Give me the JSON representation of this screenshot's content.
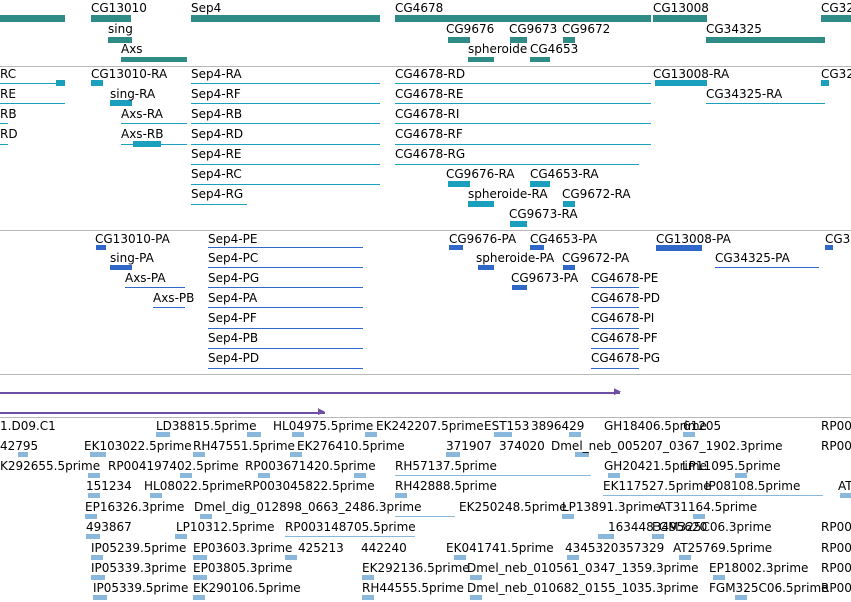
{
  "colors": {
    "gene": "#2e8b86",
    "transcript": "#1aa0bd",
    "protein": "#2f68c8",
    "pale": "#8ab8dc",
    "long": "#6d4fa4",
    "separator": "#b8b8b8"
  },
  "tracks": {
    "genes": {
      "labels": [
        "CG13010",
        "Sep4",
        "CG4678",
        "CG13008",
        "CG32",
        "sing",
        "CG9676",
        "CG9673",
        "CG9672",
        "CG34325",
        "Axs",
        "spheroide",
        "CG4653"
      ]
    },
    "transcripts": {
      "labels": [
        "RC",
        "CG13010-RA",
        "Sep4-RA",
        "CG4678-RD",
        "CG13008-RA",
        "CG32",
        "RE",
        "sing-RA",
        "Sep4-RF",
        "CG4678-RE",
        "CG34325-RA",
        "RB",
        "Axs-RA",
        "Sep4-RB",
        "CG4678-RI",
        "RD",
        "Axs-RB",
        "Sep4-RD",
        "CG4678-RF",
        "Sep4-RE",
        "CG4678-RG",
        "Sep4-RC",
        "CG9676-RA",
        "CG4653-RA",
        "Sep4-RG",
        "spheroide-RA",
        "CG9672-RA",
        "CG9673-RA"
      ]
    },
    "proteins": {
      "labels": [
        "CG13010-PA",
        "Sep4-PE",
        "CG9676-PA",
        "CG4653-PA",
        "CG13008-PA",
        "CG3",
        "sing-PA",
        "Sep4-PC",
        "spheroide-PA",
        "CG9672-PA",
        "CG34325-PA",
        "Axs-PA",
        "Sep4-PG",
        "CG9673-PA",
        "CG4678-PE",
        "Axs-PB",
        "Sep4-PA",
        "CG4678-PD",
        "Sep4-PF",
        "CG4678-PI",
        "Sep4-PB",
        "CG4678-PF",
        "Sep4-PD",
        "CG4678-PG"
      ]
    },
    "ests": {
      "labels": [
        "1.D09.C1",
        "LD38815.5prime",
        "HL04975.5prime",
        "EK242207.5prime",
        "EST153",
        "3896429",
        "GH18406.5prime",
        "61205",
        "RP00",
        "42795",
        "EK103022.5prime",
        "RH47551.5prime",
        "EK276410.5prime",
        "371907",
        "374020",
        "Dmel_neb_005207_0367_1902.3prime",
        "RP00",
        "K292655.5prime",
        "RP004197402.5prime",
        "RP003671420.5prime",
        "RH57137.5prime",
        "GH20421.5prime",
        "LP11095.5prime",
        "151234",
        "HL08022.5prime",
        "RP003045822.5prime",
        "RH42888.5prime",
        "EK117527.5prime",
        "IP08108.5prime",
        "AT",
        "EP16326.3prime",
        "Dmel_dig_012898_0663_2486.3prime",
        "EK250248.5prime",
        "LP13891.3prime",
        "AT31164.5prime",
        "493867",
        "LP10312.5prime",
        "RP003148705.5prime",
        "1634483495620",
        "FGM325C06.3prime",
        "RP00",
        "IP05239.5prime",
        "EP03603.3prime",
        "425213",
        "442240",
        "EK041741.5prime",
        "4345320357329",
        "AT25769.5prime",
        "RP00",
        "IP05339.3prime",
        "EP03805.3prime",
        "EK292136.5prime",
        "Dmel_neb_010561_0347_1359.3prime",
        "EP18002.3prime",
        "RP00",
        "IP05339.5prime",
        "EK290106.5prime",
        "RH44555.5prime",
        "Dmel_neb_010682_0155_1035.3prime",
        "FGM325C06.5prime",
        "RP00"
      ]
    }
  }
}
